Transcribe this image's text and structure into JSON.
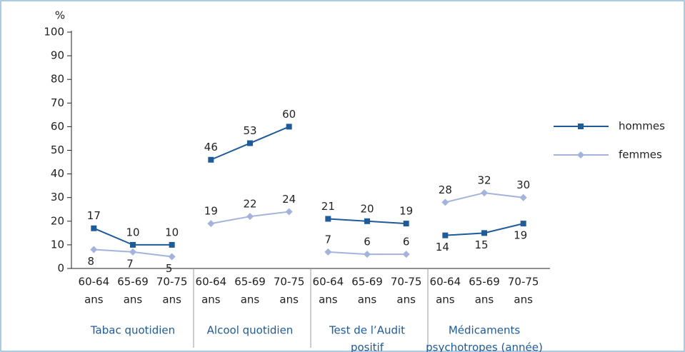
{
  "chart_data": {
    "type": "line",
    "y_unit": "%",
    "ylim": [
      0,
      100
    ],
    "yticks": [
      0,
      10,
      20,
      30,
      40,
      50,
      60,
      70,
      80,
      90,
      100
    ],
    "series": [
      {
        "name": "hommes",
        "color": "#1f5a99",
        "marker": "square"
      },
      {
        "name": "femmes",
        "color": "#a3b3dc",
        "marker": "diamond"
      }
    ],
    "groups": [
      {
        "label": [
          "Tabac quotidien"
        ],
        "categories": [
          [
            "60-64",
            "ans"
          ],
          [
            "65-69",
            "ans"
          ],
          [
            "70-75",
            "ans"
          ]
        ],
        "series": [
          {
            "values": [
              17,
              10,
              10
            ]
          },
          {
            "values": [
              8,
              7,
              5
            ]
          }
        ]
      },
      {
        "label": [
          "Alcool quotidien"
        ],
        "categories": [
          [
            "60-64",
            "ans"
          ],
          [
            "65-69",
            "ans"
          ],
          [
            "70-75",
            "ans"
          ]
        ],
        "series": [
          {
            "values": [
              46,
              53,
              60
            ]
          },
          {
            "values": [
              19,
              22,
              24
            ]
          }
        ]
      },
      {
        "label": [
          "Test de l’Audit",
          "positif"
        ],
        "categories": [
          [
            "60-64",
            "ans"
          ],
          [
            "65-69",
            "ans"
          ],
          [
            "70-75",
            "ans"
          ]
        ],
        "series": [
          {
            "values": [
              21,
              20,
              19
            ]
          },
          {
            "values": [
              7,
              6,
              6
            ]
          }
        ]
      },
      {
        "label": [
          "Médicaments",
          "psychotropes (année)"
        ],
        "categories": [
          [
            "60-64",
            "ans"
          ],
          [
            "65-69",
            "ans"
          ],
          [
            "70-75",
            "ans"
          ]
        ],
        "series": [
          {
            "values": [
              14,
              15,
              19
            ]
          },
          {
            "values": [
              28,
              32,
              30
            ]
          }
        ]
      }
    ],
    "legend": "right"
  }
}
